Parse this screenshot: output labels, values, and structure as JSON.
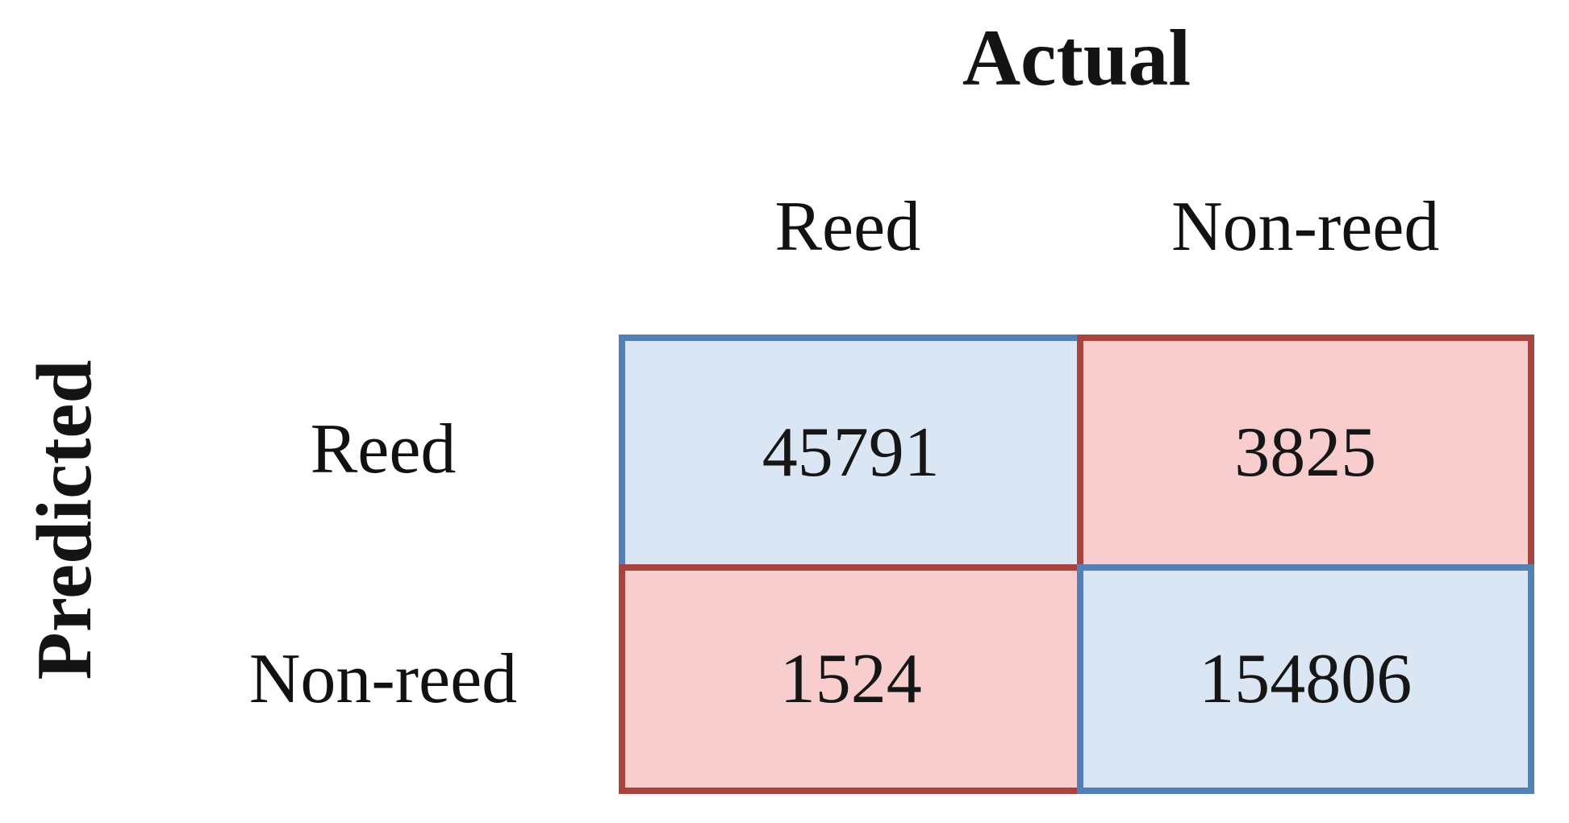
{
  "chart_data": {
    "type": "table",
    "subtype": "confusion-matrix",
    "x_axis_title": "Actual",
    "y_axis_title": "Predicted",
    "actual_labels": [
      "Reed",
      "Non-reed"
    ],
    "predicted_labels": [
      "Reed",
      "Non-reed"
    ],
    "matrix": [
      [
        45791,
        3825
      ],
      [
        1524,
        154806
      ]
    ],
    "cells": [
      {
        "predicted": "Reed",
        "actual": "Reed",
        "value": 45791,
        "role": "true-positive",
        "style": "blue"
      },
      {
        "predicted": "Reed",
        "actual": "Non-reed",
        "value": 3825,
        "role": "false-positive",
        "style": "red"
      },
      {
        "predicted": "Non-reed",
        "actual": "Reed",
        "value": 1524,
        "role": "false-negative",
        "style": "red"
      },
      {
        "predicted": "Non-reed",
        "actual": "Non-reed",
        "value": 154806,
        "role": "true-negative",
        "style": "blue"
      }
    ],
    "layout": {
      "grid": "2x2",
      "legend": "none",
      "gridlines": "cell borders only"
    }
  },
  "colors": {
    "agreement_fill": "#dbe6f4",
    "agreement_border": "#5580b4",
    "disagreement_fill": "#f7cecd",
    "disagreement_border": "#a84440",
    "text": "#141414",
    "background": "#ffffff"
  }
}
